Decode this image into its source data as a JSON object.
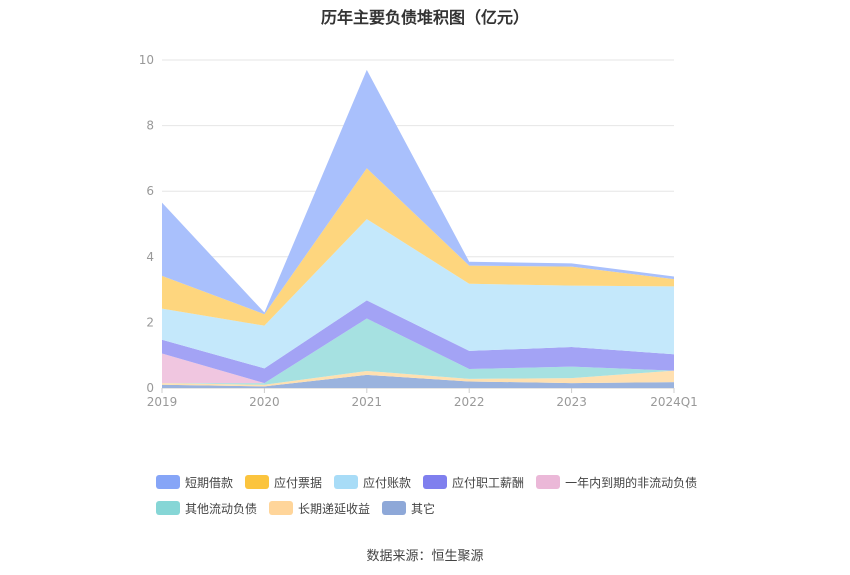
{
  "title": "历年主要负债堆积图（亿元）",
  "source": "数据来源：恒生聚源",
  "chart_data": {
    "type": "area",
    "stacked": true,
    "categories": [
      "2019",
      "2020",
      "2021",
      "2022",
      "2023",
      "2024Q1"
    ],
    "ylim": [
      0,
      10
    ],
    "yticks": [
      "0",
      "2",
      "4",
      "6",
      "8",
      "10"
    ],
    "grid": true,
    "legend_position": "bottom",
    "series": [
      {
        "name": "其它",
        "color": "#9ab3de",
        "values": [
          0.1,
          0.05,
          0.4,
          0.2,
          0.15,
          0.18
        ]
      },
      {
        "name": "长期递延收益",
        "color": "#ffe0b0",
        "values": [
          0.05,
          0.05,
          0.12,
          0.08,
          0.15,
          0.35
        ]
      },
      {
        "name": "其他流动负债",
        "color": "#a6e1e1",
        "values": [
          0.0,
          0.05,
          1.6,
          0.3,
          0.35,
          0.0
        ]
      },
      {
        "name": "一年内到期的非流动负债",
        "color": "#f0c6e0",
        "values": [
          0.9,
          0.0,
          0.0,
          0.0,
          0.0,
          0.0
        ]
      },
      {
        "name": "应付职工薪酬",
        "color": "#a3a3f5",
        "values": [
          0.42,
          0.45,
          0.55,
          0.55,
          0.6,
          0.5
        ]
      },
      {
        "name": "应付账款",
        "color": "#c4e8fb",
        "values": [
          0.95,
          1.3,
          2.48,
          2.05,
          1.87,
          2.07
        ]
      },
      {
        "name": "应付票据",
        "color": "#fed67e",
        "values": [
          1.0,
          0.35,
          1.55,
          0.55,
          0.58,
          0.22
        ]
      },
      {
        "name": "短期借款",
        "color": "#a9c0fc",
        "values": [
          2.23,
          0.05,
          3.0,
          0.12,
          0.1,
          0.08
        ]
      }
    ],
    "legend_order": [
      "短期借款",
      "应付票据",
      "应付账款",
      "应付职工薪酬",
      "一年内到期的非流动负债",
      "其他流动负债",
      "长期递延收益",
      "其它"
    ],
    "legend_colors": {
      "短期借款": "#86a5f7",
      "应付票据": "#fbc43e",
      "应付账款": "#a8dcf7",
      "应付职工薪酬": "#7f7fee",
      "一年内到期的非流动负债": "#ebb8d8",
      "其他流动负债": "#86d6d6",
      "长期递延收益": "#ffd59a",
      "其它": "#8ea8d8"
    }
  }
}
